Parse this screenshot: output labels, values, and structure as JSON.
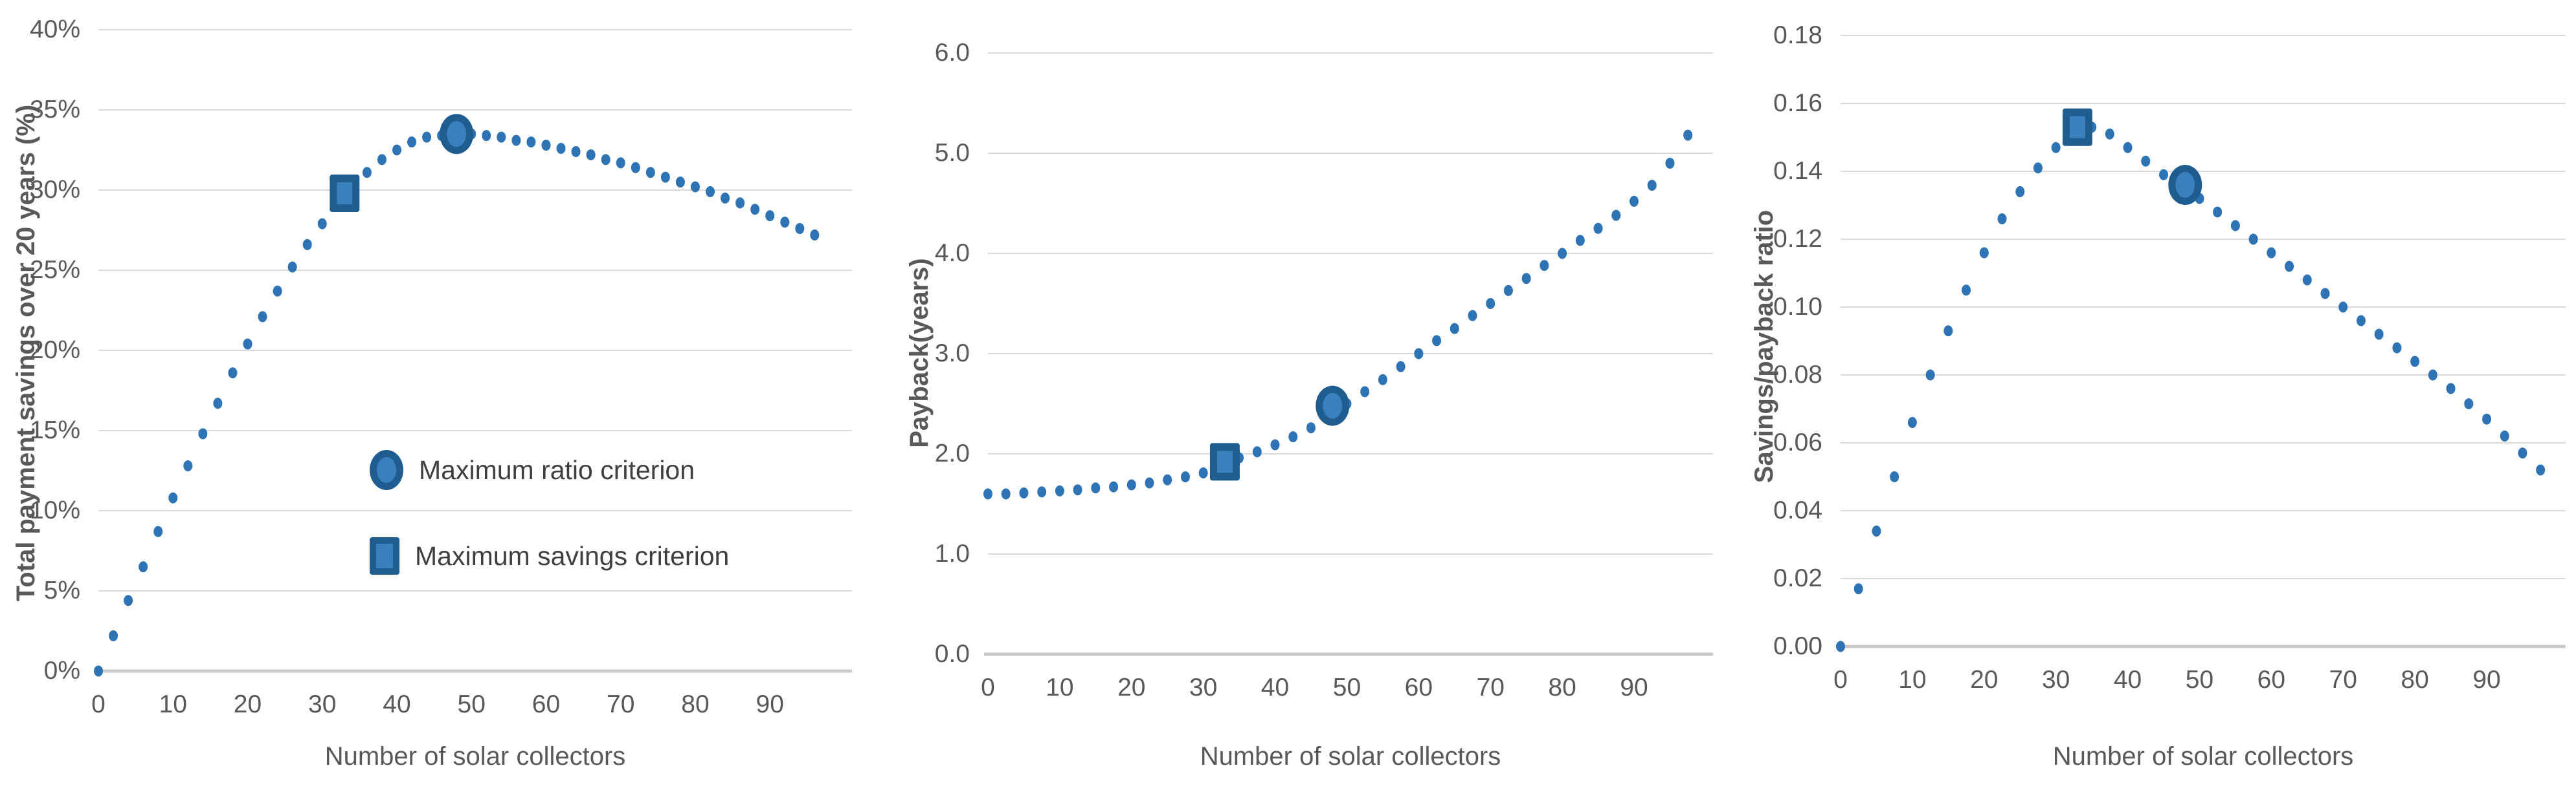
{
  "colors": {
    "dot": "#2E74B5",
    "marker_border": "#1F5C8F",
    "marker_fill": "#3A80BC",
    "gridline": "#D9D9D9",
    "axis_line": "#C9C9C9",
    "text": "#595959",
    "legend_text": "#3F3F3F"
  },
  "legend": {
    "items": [
      {
        "marker": "circle",
        "label": "Maximum ratio criterion"
      },
      {
        "marker": "square",
        "label": "Maximum savings criterion"
      }
    ]
  },
  "x_axis": {
    "title": "Number of solar collectors",
    "ticks": [
      0,
      10,
      20,
      30,
      40,
      50,
      60,
      70,
      80,
      90
    ]
  },
  "chart_data": [
    {
      "type": "scatter",
      "y_title": "Total payment savings over 20 years (%)",
      "xlabel": "Number of solar collectors",
      "y_tick_labels": [
        "0%",
        "5%",
        "10%",
        "15%",
        "20%",
        "25%",
        "30%",
        "35%",
        "40%"
      ],
      "y_tick_values": [
        0,
        5,
        10,
        15,
        20,
        25,
        30,
        35,
        40
      ],
      "y_min": 0,
      "y_max": 40,
      "x": [
        0,
        2,
        4,
        6,
        8,
        10,
        12,
        14,
        16,
        18,
        20,
        22,
        24,
        26,
        28,
        30,
        32,
        34,
        36,
        38,
        40,
        42,
        44,
        46,
        48,
        50,
        52,
        54,
        56,
        58,
        60,
        62,
        64,
        66,
        68,
        70,
        72,
        74,
        76,
        78,
        80,
        82,
        84,
        86,
        88,
        90,
        92,
        94,
        96
      ],
      "values": [
        0,
        2.2,
        4.4,
        6.5,
        8.7,
        10.8,
        12.8,
        14.8,
        16.7,
        18.6,
        20.4,
        22.1,
        23.7,
        25.2,
        26.6,
        27.9,
        29.1,
        30.2,
        31.1,
        31.9,
        32.5,
        33.0,
        33.3,
        33.4,
        33.5,
        33.5,
        33.4,
        33.3,
        33.1,
        33.0,
        32.8,
        32.6,
        32.4,
        32.2,
        31.9,
        31.7,
        31.4,
        31.1,
        30.8,
        30.5,
        30.2,
        29.9,
        29.5,
        29.2,
        28.8,
        28.4,
        28.0,
        27.6,
        27.2
      ],
      "markers": [
        {
          "shape": "circle",
          "x": 48,
          "y": 33.5,
          "label": "Maximum ratio criterion"
        },
        {
          "shape": "square",
          "x": 33,
          "y": 29.8,
          "label": "Maximum savings criterion"
        }
      ]
    },
    {
      "type": "scatter",
      "y_title": "Payback(years)",
      "xlabel": "Number of solar collectors",
      "y_tick_labels": [
        "0.0",
        "1.0",
        "2.0",
        "3.0",
        "4.0",
        "5.0",
        "6.0"
      ],
      "y_tick_values": [
        0,
        1,
        2,
        3,
        4,
        5,
        6
      ],
      "y_min": 0,
      "y_max": 6,
      "x": [
        0,
        2.5,
        5,
        7.5,
        10,
        12.5,
        15,
        17.5,
        20,
        22.5,
        25,
        27.5,
        30,
        32.5,
        35,
        37.5,
        40,
        42.5,
        45,
        47.5,
        50,
        52.5,
        55,
        57.5,
        60,
        62.5,
        65,
        67.5,
        70,
        72.5,
        75,
        77.5,
        80,
        82.5,
        85,
        87.5,
        90,
        92.5,
        95,
        97.5
      ],
      "values": [
        1.6,
        1.6,
        1.61,
        1.62,
        1.63,
        1.64,
        1.66,
        1.67,
        1.69,
        1.71,
        1.74,
        1.77,
        1.81,
        1.86,
        1.96,
        2.02,
        2.09,
        2.17,
        2.26,
        2.37,
        2.5,
        2.62,
        2.74,
        2.87,
        3.0,
        3.13,
        3.25,
        3.38,
        3.5,
        3.63,
        3.75,
        3.88,
        4.0,
        4.13,
        4.25,
        4.38,
        4.52,
        4.68,
        4.9,
        5.18
      ],
      "markers": [
        {
          "shape": "circle",
          "x": 48,
          "y": 2.48,
          "label": "Maximum ratio criterion"
        },
        {
          "shape": "square",
          "x": 33,
          "y": 1.92,
          "label": "Maximum savings criterion"
        }
      ]
    },
    {
      "type": "scatter",
      "y_title": "Savings/payback ratio",
      "xlabel": "Number of solar collectors",
      "y_tick_labels": [
        "0.00",
        "0.02",
        "0.04",
        "0.06",
        "0.08",
        "0.10",
        "0.12",
        "0.14",
        "0.16",
        "0.18"
      ],
      "y_tick_values": [
        0,
        0.02,
        0.04,
        0.06,
        0.08,
        0.1,
        0.12,
        0.14,
        0.16,
        0.18
      ],
      "y_min": 0,
      "y_max": 0.18,
      "x": [
        0,
        2.5,
        5,
        7.5,
        10,
        12.5,
        15,
        17.5,
        20,
        22.5,
        25,
        27.5,
        30,
        32.5,
        35,
        37.5,
        40,
        42.5,
        45,
        47.5,
        50,
        52.5,
        55,
        57.5,
        60,
        62.5,
        65,
        67.5,
        70,
        72.5,
        75,
        77.5,
        80,
        82.5,
        85,
        87.5,
        90,
        92.5,
        95,
        97.5
      ],
      "values": [
        0.0,
        0.017,
        0.034,
        0.05,
        0.066,
        0.08,
        0.093,
        0.105,
        0.116,
        0.126,
        0.134,
        0.141,
        0.147,
        0.151,
        0.153,
        0.151,
        0.147,
        0.143,
        0.139,
        0.136,
        0.132,
        0.128,
        0.124,
        0.12,
        0.116,
        0.112,
        0.108,
        0.104,
        0.1,
        0.096,
        0.092,
        0.088,
        0.084,
        0.08,
        0.076,
        0.0715,
        0.067,
        0.062,
        0.057,
        0.052
      ],
      "markers": [
        {
          "shape": "circle",
          "x": 48,
          "y": 0.136,
          "label": "Maximum ratio criterion"
        },
        {
          "shape": "square",
          "x": 33,
          "y": 0.153,
          "label": "Maximum savings criterion"
        }
      ]
    }
  ]
}
